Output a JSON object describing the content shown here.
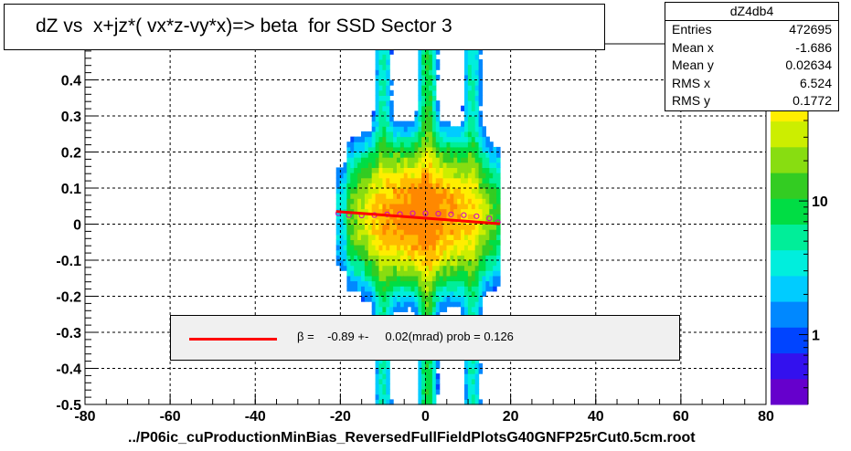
{
  "chart_data": {
    "type": "heatmap",
    "title": "dZ vs  x+jz*( vx*z-vy*x)=> beta  for SSD Sector 3",
    "xlabel": "../P06ic_cuProductionMinBias_ReversedFullFieldPlotsG40GNFP25rCut0.5cm.root",
    "ylabel": "",
    "xlim": [
      -80,
      80
    ],
    "ylim": [
      -0.5,
      0.5
    ],
    "x_ticks": [
      -80,
      -60,
      -40,
      -20,
      0,
      20,
      40,
      60,
      80
    ],
    "x_tick_labels": [
      "-80",
      "-60",
      "-40",
      "-20",
      "0",
      "20",
      "40",
      "60",
      "80"
    ],
    "y_ticks": [
      -0.5,
      -0.4,
      -0.3,
      -0.2,
      -0.1,
      0,
      0.1,
      0.2,
      0.3,
      0.4
    ],
    "y_tick_labels": [
      "-0.5",
      "-0.4",
      "-0.3",
      "-0.2",
      "-0.1",
      "0",
      "0.1",
      "0.2",
      "0.3",
      "0.4"
    ],
    "grid": true,
    "color_scale": {
      "type": "log",
      "tick_labels": [
        "1",
        "10"
      ],
      "tick_values": [
        1,
        10
      ],
      "palette": [
        "#6600cc",
        "#3311ee",
        "#0044ff",
        "#0088ff",
        "#00ccff",
        "#00eedd",
        "#00ee99",
        "#00dd44",
        "#33cc22",
        "#88dd11",
        "#ccee00",
        "#ffee00",
        "#ffbb00",
        "#ff8800"
      ]
    },
    "data_x_range": [
      -21,
      17.5
    ],
    "profile_means": {
      "x": [
        -20.5,
        -18,
        -15,
        -12,
        -9,
        -6,
        -3,
        0,
        3,
        6,
        9,
        12,
        15,
        17
      ],
      "y": [
        0.03,
        0.025,
        0.024,
        0.025,
        0.027,
        0.028,
        0.03,
        0.03,
        0.029,
        0.027,
        0.025,
        0.022,
        0.016,
        0.005
      ]
    },
    "fit": {
      "x": [
        -21,
        17.5
      ],
      "y": [
        0.035,
        0.001
      ]
    }
  },
  "stats": {
    "name": "dZ4db4",
    "rows": [
      {
        "label": "Entries",
        "value": "472695"
      },
      {
        "label": "Mean x",
        "value": "-1.686"
      },
      {
        "label": "Mean y",
        "value": "0.02634"
      },
      {
        "label": "RMS x",
        "value": "6.524"
      },
      {
        "label": "RMS y",
        "value": "0.1772"
      }
    ]
  },
  "legend": {
    "text": "β =    -0.89 +-     0.02(mrad) prob = 0.126",
    "line_color": "#ff0000"
  }
}
